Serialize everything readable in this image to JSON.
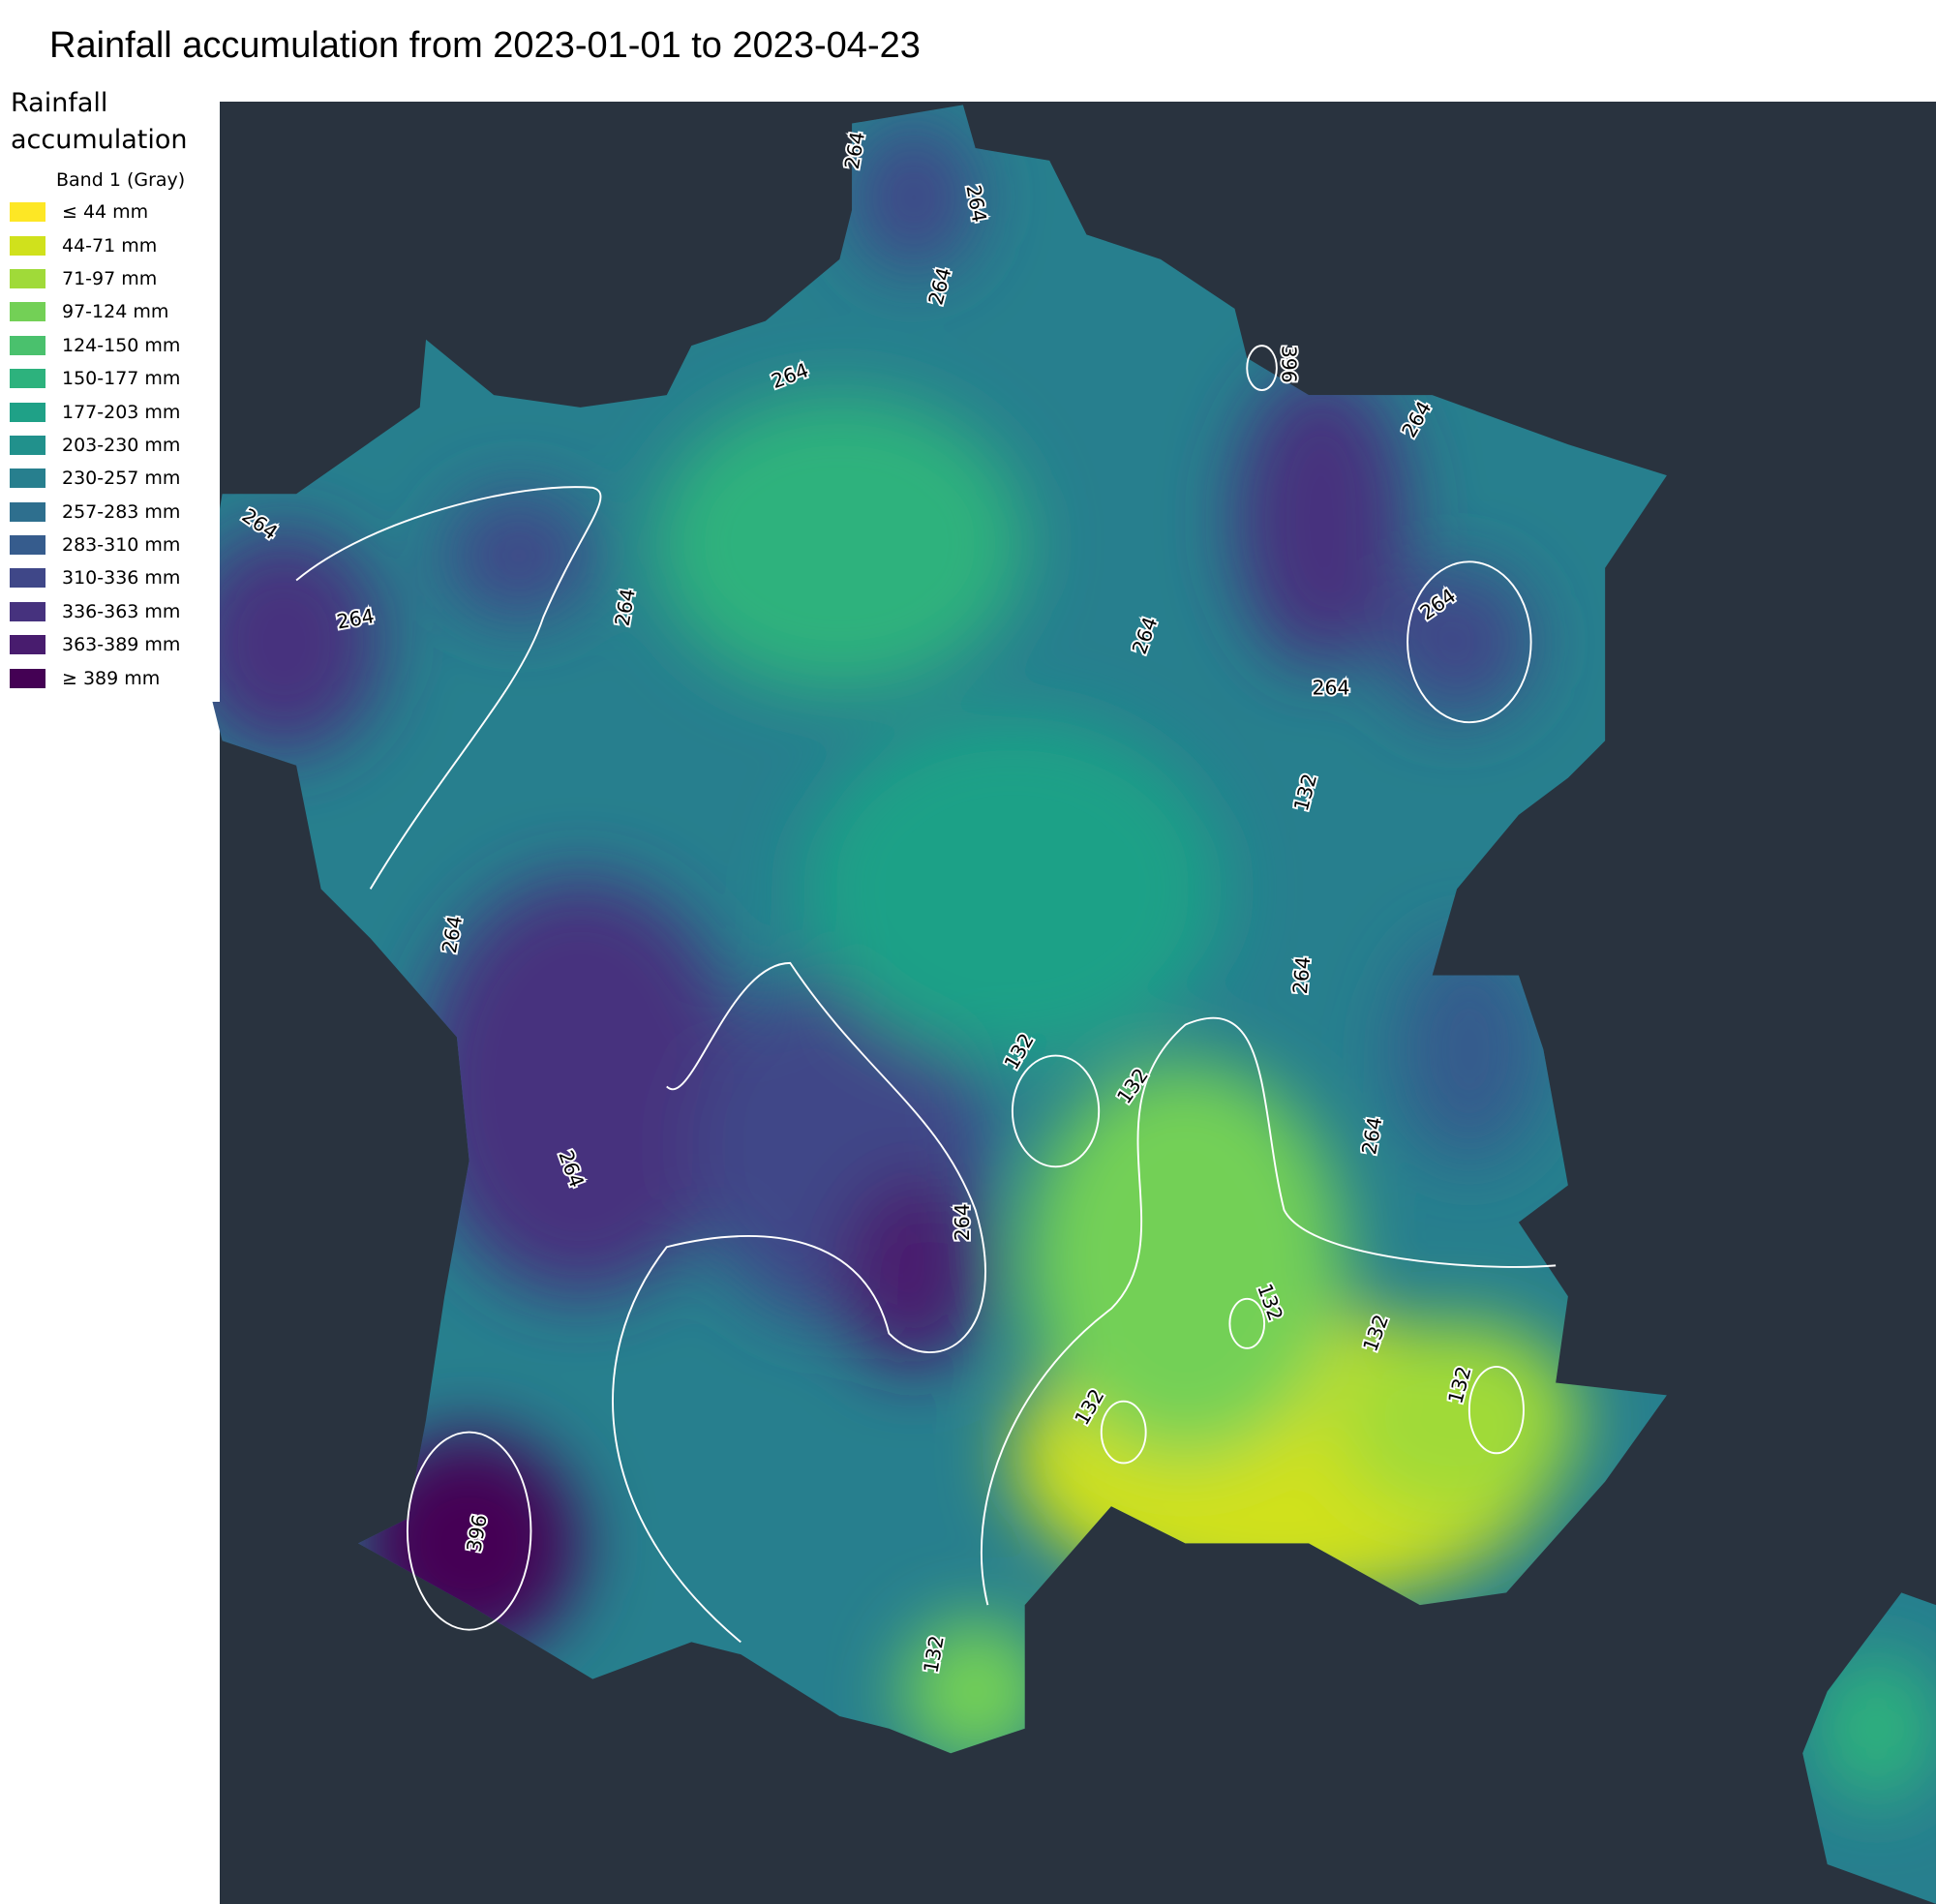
{
  "title": "Rainfall accumulation from 2023-01-01 to 2023-04-23",
  "legend": {
    "title": "Rainfall accumulation",
    "subtitle": "Band 1 (Gray)",
    "items": [
      {
        "label": "≤ 44 mm",
        "color": "#fde725"
      },
      {
        "label": "44-71 mm",
        "color": "#d0e11c"
      },
      {
        "label": "71-97 mm",
        "color": "#a0da39"
      },
      {
        "label": "97-124 mm",
        "color": "#73d056"
      },
      {
        "label": "124-150 mm",
        "color": "#4ac16d"
      },
      {
        "label": "150-177 mm",
        "color": "#2db27d"
      },
      {
        "label": "177-203 mm",
        "color": "#1fa187"
      },
      {
        "label": "203-230 mm",
        "color": "#21918c"
      },
      {
        "label": "230-257 mm",
        "color": "#277f8e"
      },
      {
        "label": "257-283 mm",
        "color": "#2e6f8e"
      },
      {
        "label": "283-310 mm",
        "color": "#365c8d"
      },
      {
        "label": "310-336 mm",
        "color": "#3f4788"
      },
      {
        "label": "336-363 mm",
        "color": "#46327e"
      },
      {
        "label": "363-389 mm",
        "color": "#481c6e"
      },
      {
        "label": "≥ 389 mm",
        "color": "#440154"
      }
    ]
  },
  "contour_labels": [
    264,
    264,
    264,
    264,
    396,
    264,
    264,
    264,
    264,
    264,
    264,
    264,
    132,
    264,
    132,
    132,
    264,
    264,
    264,
    264,
    132,
    132,
    132,
    132,
    396,
    132
  ]
}
